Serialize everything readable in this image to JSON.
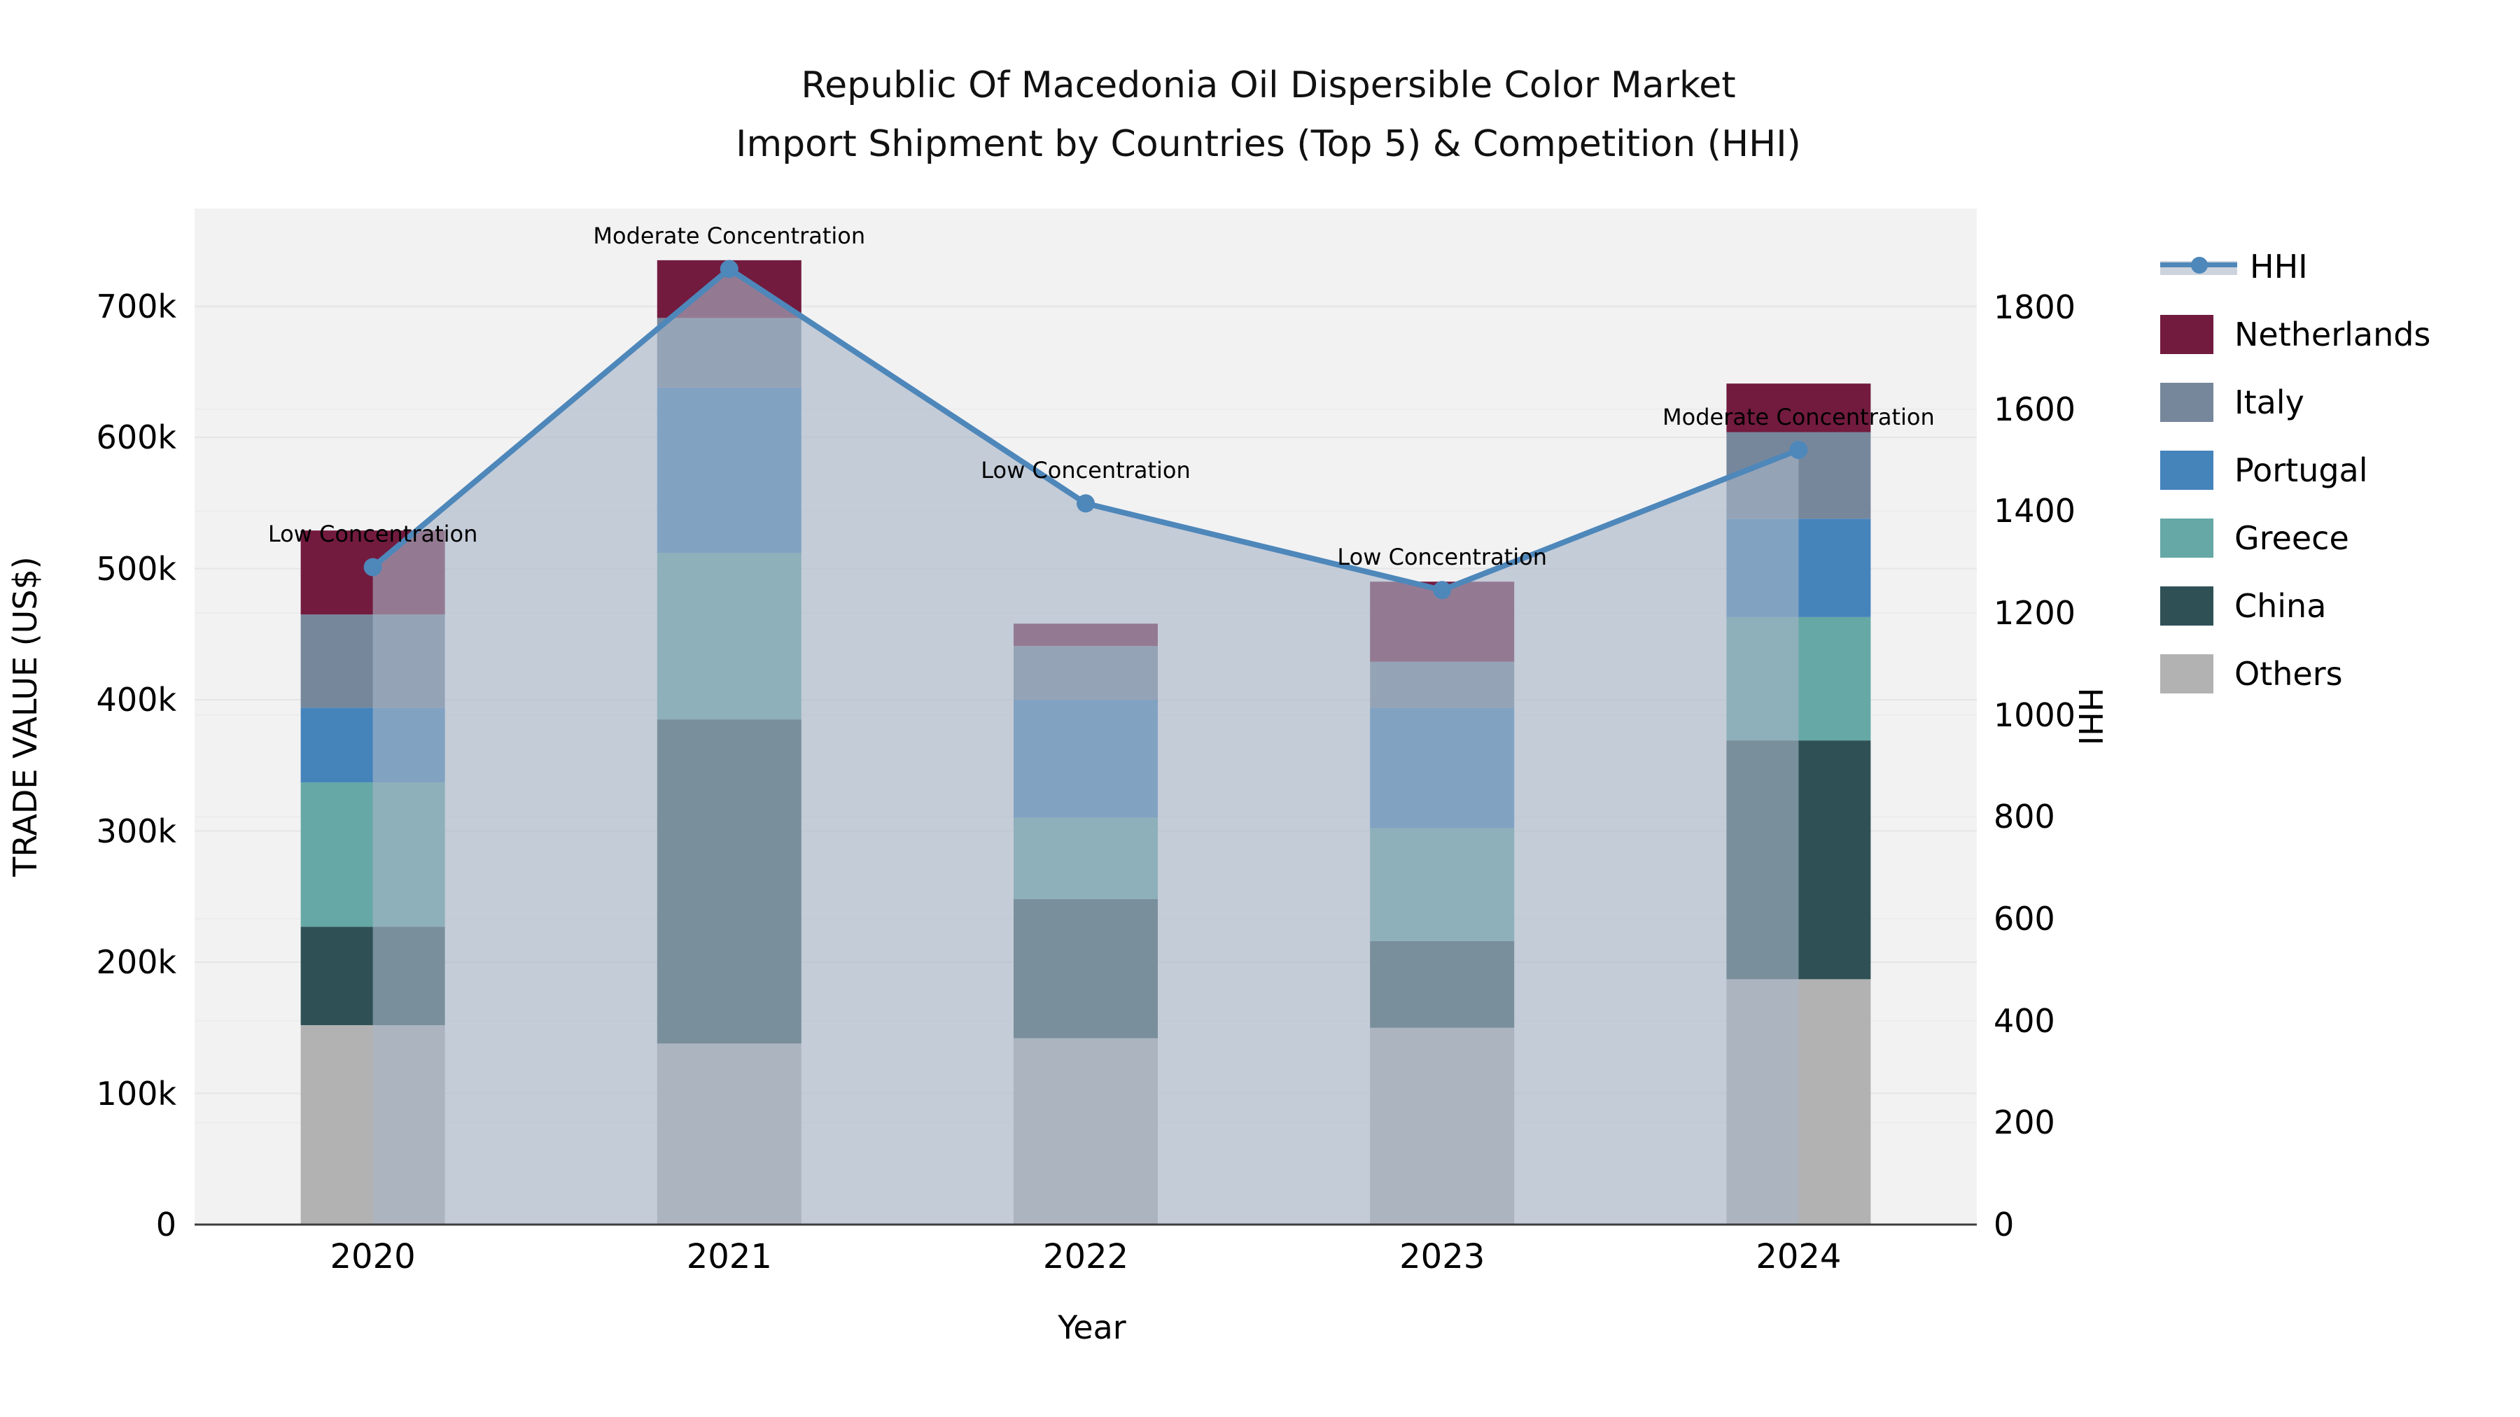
{
  "header": {
    "title_line1": "Republic Of Macedonia Oil Dispersible Color Market",
    "title_line2": "Import Shipment by Countries (Top 5) & Competition (HHI)"
  },
  "axes": {
    "x": {
      "label": "Year"
    },
    "y_left": {
      "label": "TRADE VALUE (US$)",
      "tick_labels": [
        "0",
        "100k",
        "200k",
        "300k",
        "400k",
        "500k",
        "600k",
        "700k"
      ],
      "tick_values_k": [
        0,
        100,
        200,
        300,
        400,
        500,
        600,
        700
      ]
    },
    "y_right": {
      "label": "HHI",
      "tick_labels": [
        "0",
        "200",
        "400",
        "600",
        "800",
        "1000",
        "1200",
        "1400",
        "1600",
        "1800"
      ],
      "tick_values": [
        0,
        200,
        400,
        600,
        800,
        1000,
        1200,
        1400,
        1600,
        1800
      ]
    }
  },
  "chart_data": {
    "type": "bar",
    "subtype": "stacked-bars-with-line-overlay",
    "title": "Republic Of Macedonia Oil Dispersible Color Market Import Shipment by Countries (Top 5) & Competition (HHI)",
    "xlabel": "Year",
    "ylabel_left": "TRADE VALUE (US$)",
    "ylabel_right": "HHI",
    "ylim_left_usd": [
      0,
      775000
    ],
    "ylim_right_hhi": [
      0,
      2000
    ],
    "grid": true,
    "legend_position": "right-outside",
    "categories": [
      "2020",
      "2021",
      "2022",
      "2023",
      "2024"
    ],
    "values_unit": "thousand US$",
    "stack_order_bottom_to_top": [
      "Others",
      "China",
      "Greece",
      "Portugal",
      "Italy",
      "Netherlands"
    ],
    "series": [
      {
        "name": "Netherlands",
        "color": "#721b3e",
        "values": [
          64,
          44,
          17,
          61,
          37
        ]
      },
      {
        "name": "Italy",
        "color": "#77879b",
        "values": [
          71,
          53,
          41,
          35,
          66
        ]
      },
      {
        "name": "Portugal",
        "color": "#4583bb",
        "values": [
          57,
          126,
          90,
          92,
          75
        ]
      },
      {
        "name": "Greece",
        "color": "#65a8a5",
        "values": [
          110,
          127,
          62,
          86,
          94
        ]
      },
      {
        "name": "China",
        "color": "#2f5156",
        "values": [
          75,
          247,
          106,
          66,
          182
        ]
      },
      {
        "name": "Others",
        "color": "#b2b2b2",
        "values": [
          152,
          138,
          142,
          150,
          187
        ]
      }
    ],
    "totals_k": [
      529,
      735,
      458,
      490,
      641
    ],
    "hhi": {
      "name": "HHI",
      "color": "#4e87ba",
      "area_fill": "rgba(168,180,198,0.62)",
      "values": [
        1290,
        1875,
        1415,
        1245,
        1520
      ]
    },
    "annotations": [
      "Low Concentration",
      "Moderate Concentration",
      "Low Concentration",
      "Low Concentration",
      "Moderate Concentration"
    ]
  },
  "colors": {
    "plot_background": "#f2f2f3",
    "grid_left": "#e5e5e7",
    "grid_right": "#ececee",
    "axis_spine": "#3d3d3d",
    "text": "#000000"
  }
}
